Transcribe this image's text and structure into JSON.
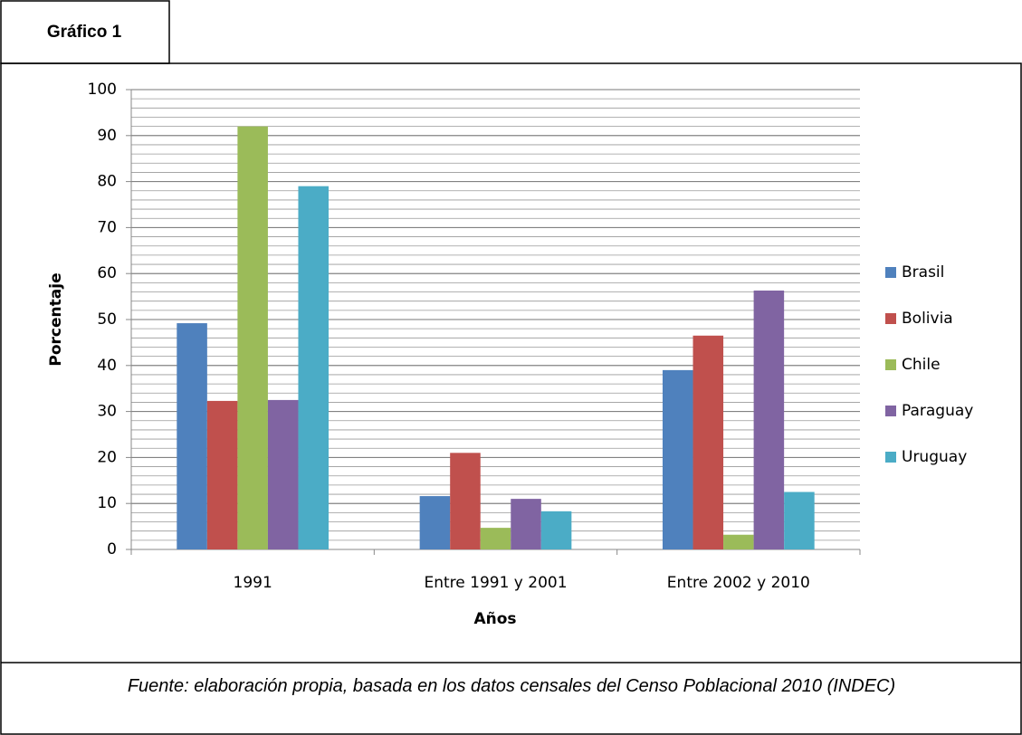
{
  "tab": "Gráfico 1",
  "caption": "Fuente: elaboración propia, basada en los datos censales del Censo Poblacional 2010 (INDEC)",
  "chart_data": {
    "type": "bar",
    "x_label": "Años",
    "y_label": "Porcentaje",
    "categories": [
      "1991",
      "Entre 1991 y 2001",
      "Entre 2002 y 2010"
    ],
    "series": [
      {
        "name": "Brasil",
        "color": "#4f81bd",
        "values": [
          49.2,
          11.6,
          39
        ]
      },
      {
        "name": "Bolivia",
        "color": "#c0504d",
        "values": [
          32.3,
          21,
          46.5
        ]
      },
      {
        "name": "Chile",
        "color": "#9bbb59",
        "values": [
          92,
          4.7,
          3.2
        ]
      },
      {
        "name": "Paraguay",
        "color": "#8064a2",
        "values": [
          32.5,
          11,
          56.3
        ]
      },
      {
        "name": "Uruguay",
        "color": "#4bacc6",
        "values": [
          79,
          8.3,
          12.5
        ]
      }
    ],
    "ylim": [
      0,
      100
    ],
    "yticks": [
      0,
      10,
      20,
      30,
      40,
      50,
      60,
      70,
      80,
      90,
      100
    ],
    "grid": true,
    "minor_grid_step": 2,
    "legend": "right"
  }
}
